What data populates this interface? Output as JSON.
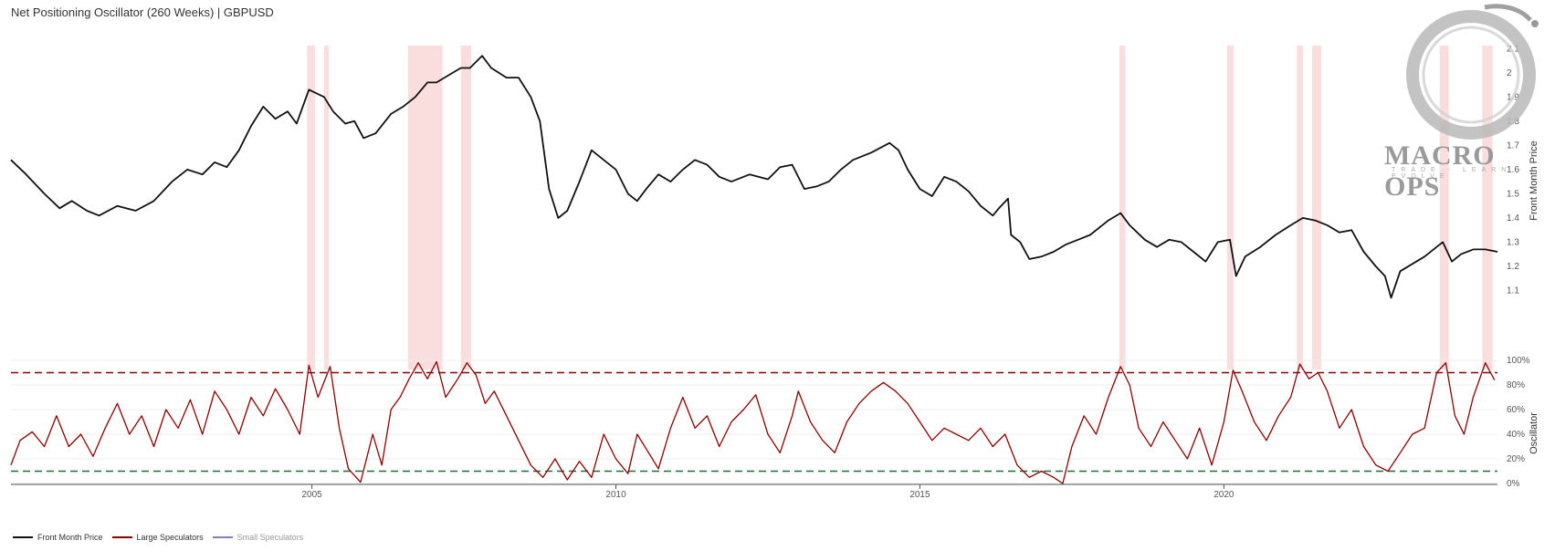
{
  "title": "Net Positioning Oscillator (260 Weeks) | GBPUSD",
  "watermark": {
    "main": "MACRO OPS",
    "sub": "TRADE - LEARN - EVOLVE"
  },
  "legend": [
    {
      "label": "Front Month Price",
      "color": "#111111"
    },
    {
      "label": "Large Speculators",
      "color": "#8b0000"
    },
    {
      "label": "Small Speculators",
      "color": "#8080c0"
    }
  ],
  "chart_data": {
    "type": "line",
    "x_range": [
      2000.05,
      2024.5
    ],
    "x_ticks": [
      "2005",
      "2010",
      "2015",
      "2020"
    ],
    "price_panel": {
      "ylabel": "Front Month Price",
      "ylim": [
        1.0,
        2.15
      ],
      "y_ticks": [
        "1.1",
        "1.2",
        "1.3",
        "1.4",
        "1.5",
        "1.6",
        "1.7",
        "1.8",
        "1.9",
        "2",
        "2.1"
      ]
    },
    "oscillator_panel": {
      "ylabel": "Oscillator",
      "ylim": [
        0,
        100
      ],
      "y_ticks": [
        "0%",
        "20%",
        "40%",
        "60%",
        "80%",
        "100%"
      ],
      "upper_threshold": 90,
      "lower_threshold": 10
    },
    "series": [
      {
        "name": "Front Month Price",
        "color": "#111111",
        "points": [
          [
            2000.05,
            1.64
          ],
          [
            2000.3,
            1.58
          ],
          [
            2000.6,
            1.5
          ],
          [
            2000.85,
            1.44
          ],
          [
            2001.05,
            1.47
          ],
          [
            2001.3,
            1.43
          ],
          [
            2001.5,
            1.41
          ],
          [
            2001.8,
            1.45
          ],
          [
            2002.1,
            1.43
          ],
          [
            2002.4,
            1.47
          ],
          [
            2002.7,
            1.55
          ],
          [
            2002.95,
            1.6
          ],
          [
            2003.2,
            1.58
          ],
          [
            2003.4,
            1.63
          ],
          [
            2003.6,
            1.61
          ],
          [
            2003.8,
            1.68
          ],
          [
            2004.0,
            1.78
          ],
          [
            2004.2,
            1.86
          ],
          [
            2004.4,
            1.81
          ],
          [
            2004.6,
            1.84
          ],
          [
            2004.75,
            1.79
          ],
          [
            2004.95,
            1.93
          ],
          [
            2005.2,
            1.9
          ],
          [
            2005.35,
            1.84
          ],
          [
            2005.55,
            1.79
          ],
          [
            2005.7,
            1.8
          ],
          [
            2005.85,
            1.73
          ],
          [
            2006.05,
            1.75
          ],
          [
            2006.3,
            1.83
          ],
          [
            2006.5,
            1.86
          ],
          [
            2006.7,
            1.9
          ],
          [
            2006.9,
            1.96
          ],
          [
            2007.05,
            1.96
          ],
          [
            2007.25,
            1.99
          ],
          [
            2007.45,
            2.02
          ],
          [
            2007.6,
            2.02
          ],
          [
            2007.8,
            2.07
          ],
          [
            2007.95,
            2.02
          ],
          [
            2008.2,
            1.98
          ],
          [
            2008.4,
            1.98
          ],
          [
            2008.6,
            1.9
          ],
          [
            2008.75,
            1.8
          ],
          [
            2008.9,
            1.52
          ],
          [
            2009.05,
            1.4
          ],
          [
            2009.2,
            1.43
          ],
          [
            2009.4,
            1.55
          ],
          [
            2009.6,
            1.68
          ],
          [
            2009.8,
            1.64
          ],
          [
            2010.0,
            1.6
          ],
          [
            2010.2,
            1.5
          ],
          [
            2010.35,
            1.47
          ],
          [
            2010.5,
            1.52
          ],
          [
            2010.7,
            1.58
          ],
          [
            2010.9,
            1.55
          ],
          [
            2011.1,
            1.6
          ],
          [
            2011.3,
            1.64
          ],
          [
            2011.5,
            1.62
          ],
          [
            2011.7,
            1.57
          ],
          [
            2011.9,
            1.55
          ],
          [
            2012.2,
            1.58
          ],
          [
            2012.5,
            1.56
          ],
          [
            2012.7,
            1.61
          ],
          [
            2012.9,
            1.62
          ],
          [
            2013.1,
            1.52
          ],
          [
            2013.3,
            1.53
          ],
          [
            2013.5,
            1.55
          ],
          [
            2013.7,
            1.6
          ],
          [
            2013.9,
            1.64
          ],
          [
            2014.2,
            1.67
          ],
          [
            2014.5,
            1.71
          ],
          [
            2014.65,
            1.68
          ],
          [
            2014.8,
            1.6
          ],
          [
            2015.0,
            1.52
          ],
          [
            2015.2,
            1.49
          ],
          [
            2015.4,
            1.57
          ],
          [
            2015.6,
            1.55
          ],
          [
            2015.8,
            1.51
          ],
          [
            2016.0,
            1.45
          ],
          [
            2016.2,
            1.41
          ],
          [
            2016.3,
            1.44
          ],
          [
            2016.45,
            1.48
          ],
          [
            2016.5,
            1.33
          ],
          [
            2016.65,
            1.3
          ],
          [
            2016.8,
            1.23
          ],
          [
            2017.0,
            1.24
          ],
          [
            2017.2,
            1.26
          ],
          [
            2017.4,
            1.29
          ],
          [
            2017.6,
            1.31
          ],
          [
            2017.8,
            1.33
          ],
          [
            2018.1,
            1.39
          ],
          [
            2018.3,
            1.42
          ],
          [
            2018.45,
            1.37
          ],
          [
            2018.7,
            1.31
          ],
          [
            2018.9,
            1.28
          ],
          [
            2019.1,
            1.31
          ],
          [
            2019.3,
            1.3
          ],
          [
            2019.5,
            1.26
          ],
          [
            2019.7,
            1.22
          ],
          [
            2019.9,
            1.3
          ],
          [
            2020.1,
            1.31
          ],
          [
            2020.2,
            1.16
          ],
          [
            2020.35,
            1.24
          ],
          [
            2020.6,
            1.28
          ],
          [
            2020.85,
            1.33
          ],
          [
            2021.1,
            1.37
          ],
          [
            2021.3,
            1.4
          ],
          [
            2021.5,
            1.39
          ],
          [
            2021.7,
            1.37
          ],
          [
            2021.9,
            1.34
          ],
          [
            2022.1,
            1.35
          ],
          [
            2022.3,
            1.26
          ],
          [
            2022.5,
            1.2
          ],
          [
            2022.65,
            1.16
          ],
          [
            2022.75,
            1.07
          ],
          [
            2022.9,
            1.18
          ],
          [
            2023.1,
            1.21
          ],
          [
            2023.3,
            1.24
          ],
          [
            2023.5,
            1.28
          ],
          [
            2023.6,
            1.3
          ],
          [
            2023.75,
            1.22
          ],
          [
            2023.9,
            1.25
          ],
          [
            2024.1,
            1.27
          ],
          [
            2024.3,
            1.27
          ],
          [
            2024.5,
            1.26
          ]
        ]
      },
      {
        "name": "Large Speculators",
        "color": "#8b0000",
        "points": [
          [
            2000.05,
            15
          ],
          [
            2000.2,
            35
          ],
          [
            2000.4,
            42
          ],
          [
            2000.6,
            30
          ],
          [
            2000.8,
            55
          ],
          [
            2001.0,
            30
          ],
          [
            2001.2,
            40
          ],
          [
            2001.4,
            22
          ],
          [
            2001.6,
            45
          ],
          [
            2001.8,
            65
          ],
          [
            2002.0,
            40
          ],
          [
            2002.2,
            55
          ],
          [
            2002.4,
            30
          ],
          [
            2002.6,
            60
          ],
          [
            2002.8,
            45
          ],
          [
            2003.0,
            68
          ],
          [
            2003.2,
            40
          ],
          [
            2003.4,
            75
          ],
          [
            2003.6,
            60
          ],
          [
            2003.8,
            40
          ],
          [
            2004.0,
            70
          ],
          [
            2004.2,
            55
          ],
          [
            2004.4,
            77
          ],
          [
            2004.6,
            60
          ],
          [
            2004.8,
            40
          ],
          [
            2004.95,
            96
          ],
          [
            2005.1,
            70
          ],
          [
            2005.3,
            95
          ],
          [
            2005.45,
            45
          ],
          [
            2005.6,
            12
          ],
          [
            2005.8,
            1
          ],
          [
            2006.0,
            40
          ],
          [
            2006.15,
            15
          ],
          [
            2006.3,
            60
          ],
          [
            2006.45,
            70
          ],
          [
            2006.6,
            85
          ],
          [
            2006.75,
            98
          ],
          [
            2006.9,
            85
          ],
          [
            2007.05,
            99
          ],
          [
            2007.2,
            70
          ],
          [
            2007.4,
            85
          ],
          [
            2007.55,
            98
          ],
          [
            2007.7,
            88
          ],
          [
            2007.85,
            65
          ],
          [
            2008.0,
            75
          ],
          [
            2008.2,
            55
          ],
          [
            2008.4,
            35
          ],
          [
            2008.6,
            15
          ],
          [
            2008.8,
            5
          ],
          [
            2009.0,
            20
          ],
          [
            2009.2,
            3
          ],
          [
            2009.4,
            18
          ],
          [
            2009.6,
            5
          ],
          [
            2009.8,
            40
          ],
          [
            2010.0,
            20
          ],
          [
            2010.2,
            8
          ],
          [
            2010.35,
            40
          ],
          [
            2010.5,
            28
          ],
          [
            2010.7,
            12
          ],
          [
            2010.9,
            45
          ],
          [
            2011.1,
            70
          ],
          [
            2011.3,
            45
          ],
          [
            2011.5,
            55
          ],
          [
            2011.7,
            30
          ],
          [
            2011.9,
            50
          ],
          [
            2012.1,
            60
          ],
          [
            2012.3,
            72
          ],
          [
            2012.5,
            40
          ],
          [
            2012.7,
            25
          ],
          [
            2012.9,
            55
          ],
          [
            2013.0,
            75
          ],
          [
            2013.2,
            50
          ],
          [
            2013.4,
            35
          ],
          [
            2013.6,
            25
          ],
          [
            2013.8,
            50
          ],
          [
            2014.0,
            65
          ],
          [
            2014.2,
            75
          ],
          [
            2014.4,
            82
          ],
          [
            2014.6,
            75
          ],
          [
            2014.8,
            65
          ],
          [
            2015.0,
            50
          ],
          [
            2015.2,
            35
          ],
          [
            2015.4,
            45
          ],
          [
            2015.6,
            40
          ],
          [
            2015.8,
            35
          ],
          [
            2016.0,
            45
          ],
          [
            2016.2,
            30
          ],
          [
            2016.4,
            40
          ],
          [
            2016.6,
            15
          ],
          [
            2016.8,
            5
          ],
          [
            2017.0,
            10
          ],
          [
            2017.2,
            5
          ],
          [
            2017.35,
            0
          ],
          [
            2017.5,
            30
          ],
          [
            2017.7,
            55
          ],
          [
            2017.9,
            40
          ],
          [
            2018.1,
            70
          ],
          [
            2018.3,
            95
          ],
          [
            2018.45,
            80
          ],
          [
            2018.6,
            45
          ],
          [
            2018.8,
            30
          ],
          [
            2019.0,
            50
          ],
          [
            2019.2,
            35
          ],
          [
            2019.4,
            20
          ],
          [
            2019.6,
            45
          ],
          [
            2019.8,
            15
          ],
          [
            2020.0,
            50
          ],
          [
            2020.15,
            92
          ],
          [
            2020.3,
            75
          ],
          [
            2020.5,
            50
          ],
          [
            2020.7,
            35
          ],
          [
            2020.9,
            55
          ],
          [
            2021.1,
            70
          ],
          [
            2021.25,
            97
          ],
          [
            2021.4,
            85
          ],
          [
            2021.55,
            90
          ],
          [
            2021.7,
            75
          ],
          [
            2021.9,
            45
          ],
          [
            2022.1,
            60
          ],
          [
            2022.3,
            30
          ],
          [
            2022.5,
            15
          ],
          [
            2022.7,
            10
          ],
          [
            2022.9,
            25
          ],
          [
            2023.1,
            40
          ],
          [
            2023.3,
            45
          ],
          [
            2023.5,
            90
          ],
          [
            2023.65,
            98
          ],
          [
            2023.8,
            55
          ],
          [
            2023.95,
            40
          ],
          [
            2024.1,
            70
          ],
          [
            2024.3,
            98
          ],
          [
            2024.45,
            84
          ]
        ]
      }
    ],
    "highlight_periods": [
      [
        2004.92,
        2005.05
      ],
      [
        2005.2,
        2005.28
      ],
      [
        2006.58,
        2007.15
      ],
      [
        2007.45,
        2007.62
      ],
      [
        2018.28,
        2018.38
      ],
      [
        2020.05,
        2020.16
      ],
      [
        2021.2,
        2021.3
      ],
      [
        2021.45,
        2021.6
      ],
      [
        2023.55,
        2023.7
      ],
      [
        2024.25,
        2024.42
      ]
    ]
  }
}
